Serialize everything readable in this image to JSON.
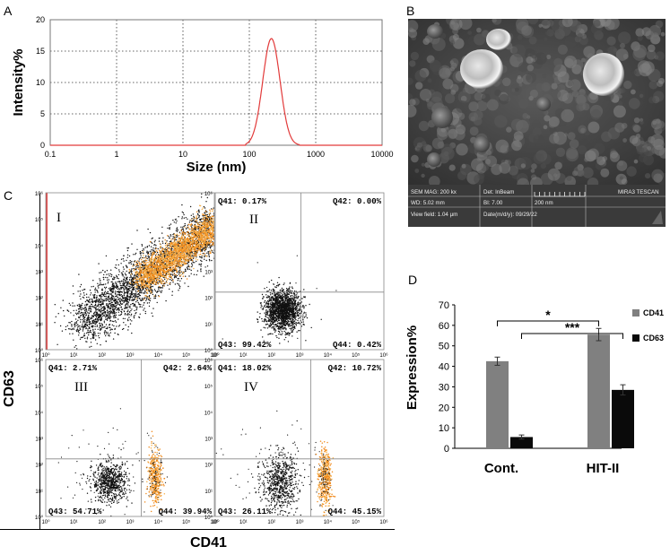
{
  "panels": {
    "a": "A",
    "b": "B",
    "c": "C",
    "d": "D"
  },
  "dls": {
    "ylabel": "Intensity%",
    "xlabel": "Size (nm)",
    "yticks": [
      "0",
      "5",
      "10",
      "15",
      "20"
    ],
    "xticks": [
      "0.1",
      "1",
      "10",
      "100",
      "1000",
      "10000"
    ],
    "line_color": "#e23a3a"
  },
  "sem": {
    "r1": [
      "SEM MAG: 200 kx",
      "Det: InBeam",
      "",
      "MIRA3 TESCAN"
    ],
    "r2": [
      "WD: 5.02 mm",
      "BI: 7.00",
      "200 nm",
      ""
    ],
    "r3": [
      "View field: 1.04 μm",
      "Date(m/d/y): 09/29/22",
      "",
      ""
    ]
  },
  "flow": {
    "xlabel": "CD41",
    "ylabel": "CD63",
    "ticks": [
      "10⁰",
      "10¹",
      "10²",
      "10³",
      "10⁴",
      "10⁵",
      "10⁶"
    ],
    "plots": [
      {
        "roman": "I",
        "q41": "",
        "q42": "",
        "q43": "",
        "q44": ""
      },
      {
        "roman": "II",
        "q41": "Q41: 0.17%",
        "q42": "Q42: 0.00%",
        "q43": "Q43: 99.42%",
        "q44": "Q44: 0.42%"
      },
      {
        "roman": "III",
        "q41": "Q41: 2.71%",
        "q42": "Q42: 2.64%",
        "q43": "Q43: 54.71%",
        "q44": "Q44: 39.94%"
      },
      {
        "roman": "IV",
        "q41": "Q41: 18.02%",
        "q42": "Q42: 10.72%",
        "q43": "Q43: 26.11%",
        "q44": "Q44: 45.15%"
      }
    ]
  },
  "chart_data": {
    "type": "bar",
    "ylabel": "Expression%",
    "categories": [
      "Cont.",
      "HIT-II"
    ],
    "ylim": [
      0,
      70
    ],
    "yticks": [
      "0",
      "10",
      "20",
      "30",
      "40",
      "50",
      "60",
      "70"
    ],
    "series": [
      {
        "name": "CD41",
        "color": "#808080",
        "values": [
          42.5,
          55.5
        ],
        "errors": [
          2,
          3
        ]
      },
      {
        "name": "CD63",
        "color": "#0a0a0a",
        "values": [
          5.5,
          28.5
        ],
        "errors": [
          1,
          2.5
        ]
      }
    ],
    "annotations": [
      "*",
      "***"
    ]
  }
}
